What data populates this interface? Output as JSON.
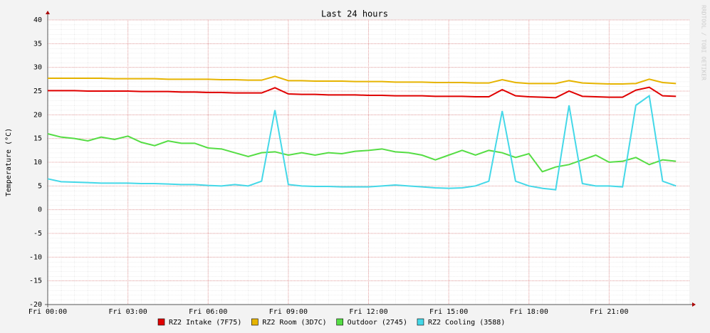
{
  "chart_data": {
    "type": "line",
    "title": "Last 24 hours",
    "y_label": "Temperature (°C)",
    "side_label": "RRDTOOL / TOBI OETIKER",
    "x": [
      0,
      0.5,
      1,
      1.5,
      2,
      2.5,
      3,
      3.5,
      4,
      4.5,
      5,
      5.5,
      6,
      6.5,
      7,
      7.5,
      8,
      8.5,
      9,
      9.5,
      10,
      10.5,
      11,
      11.5,
      12,
      12.5,
      13,
      13.5,
      14,
      14.5,
      15,
      15.5,
      16,
      16.5,
      17,
      17.5,
      18,
      18.5,
      19,
      19.5,
      20,
      20.5,
      21,
      21.5,
      22,
      22.5,
      23,
      23.5
    ],
    "xlim": [
      0,
      24
    ],
    "xticks": [
      {
        "value": 0,
        "label": "Fri 00:00"
      },
      {
        "value": 3,
        "label": "Fri 03:00"
      },
      {
        "value": 6,
        "label": "Fri 06:00"
      },
      {
        "value": 9,
        "label": "Fri 09:00"
      },
      {
        "value": 12,
        "label": "Fri 12:00"
      },
      {
        "value": 15,
        "label": "Fri 15:00"
      },
      {
        "value": 18,
        "label": "Fri 18:00"
      },
      {
        "value": 21,
        "label": "Fri 21:00"
      }
    ],
    "ylim": [
      -20,
      40
    ],
    "yticks": [
      -20,
      -15,
      -10,
      -5,
      0,
      5,
      10,
      15,
      20,
      25,
      30,
      35,
      40
    ],
    "grid": true,
    "series": [
      {
        "name": "RZ2 Intake (7F75)",
        "color": "#e00000",
        "values": [
          25.1,
          25.1,
          25.1,
          25.0,
          25.0,
          25.0,
          25.0,
          24.9,
          24.9,
          24.9,
          24.8,
          24.8,
          24.7,
          24.7,
          24.6,
          24.6,
          24.6,
          25.7,
          24.4,
          24.3,
          24.3,
          24.2,
          24.2,
          24.2,
          24.1,
          24.1,
          24.0,
          24.0,
          24.0,
          23.9,
          23.9,
          23.9,
          23.8,
          23.8,
          25.3,
          24.0,
          23.8,
          23.7,
          23.6,
          25.0,
          23.9,
          23.8,
          23.7,
          23.7,
          25.2,
          25.8,
          24.0,
          23.9
        ]
      },
      {
        "name": "RZ2 Room (3D7C)",
        "color": "#e6b400",
        "values": [
          27.7,
          27.7,
          27.7,
          27.7,
          27.7,
          27.6,
          27.6,
          27.6,
          27.6,
          27.5,
          27.5,
          27.5,
          27.5,
          27.4,
          27.4,
          27.3,
          27.3,
          28.1,
          27.2,
          27.2,
          27.1,
          27.1,
          27.1,
          27.0,
          27.0,
          27.0,
          26.9,
          26.9,
          26.9,
          26.8,
          26.8,
          26.8,
          26.7,
          26.7,
          27.4,
          26.8,
          26.6,
          26.6,
          26.6,
          27.2,
          26.7,
          26.6,
          26.5,
          26.5,
          26.6,
          27.5,
          26.8,
          26.6
        ]
      },
      {
        "name": "Outdoor (2745)",
        "color": "#55dd44",
        "values": [
          16,
          15.3,
          15,
          14.5,
          15.3,
          14.8,
          15.5,
          14.2,
          13.5,
          14.5,
          14,
          14,
          13,
          12.8,
          12,
          11.2,
          12,
          12.2,
          11.5,
          12,
          11.5,
          12,
          11.8,
          12.3,
          12.5,
          12.8,
          12.2,
          12,
          11.5,
          10.5,
          11.5,
          12.5,
          11.5,
          12.5,
          12,
          11,
          11.8,
          8,
          9,
          9.5,
          10.5,
          11.5,
          10,
          10.2,
          11,
          9.5,
          10.5,
          10.2
        ]
      },
      {
        "name": "RZ2 Cooling (3588)",
        "color": "#44d8e8",
        "values": [
          6.5,
          5.9,
          5.8,
          5.7,
          5.6,
          5.6,
          5.6,
          5.5,
          5.5,
          5.4,
          5.3,
          5.3,
          5.1,
          5.0,
          5.3,
          5.0,
          6,
          21,
          5.3,
          5.0,
          4.9,
          4.9,
          4.8,
          4.8,
          4.8,
          5.0,
          5.2,
          5.0,
          4.8,
          4.6,
          4.5,
          4.6,
          5.0,
          6,
          20.8,
          6,
          5,
          4.5,
          4.2,
          22,
          5.5,
          5,
          5,
          4.8,
          22,
          24,
          6,
          5
        ]
      }
    ]
  }
}
